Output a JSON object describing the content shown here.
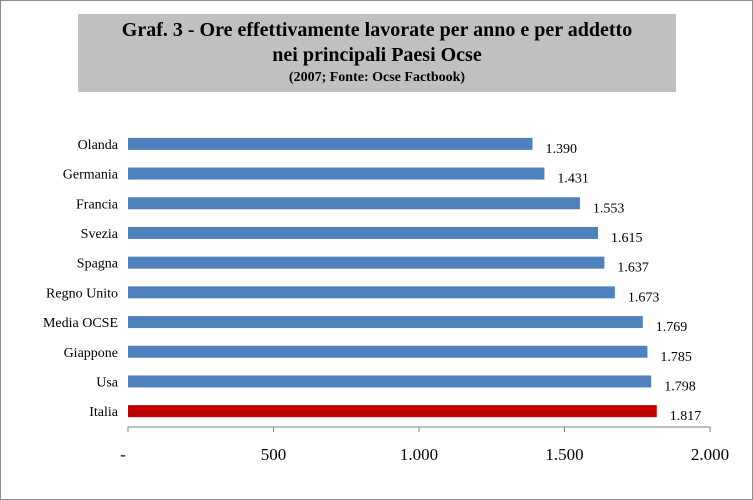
{
  "chart_data": {
    "type": "bar",
    "orientation": "horizontal",
    "title_line1": "Graf. 3 - Ore effettivamente lavorate per anno e per addetto",
    "title_line2": "nei principali Paesi Ocse",
    "subtitle": "(2007; Fonte: Ocse Factbook)",
    "categories": [
      "Olanda",
      "Germania",
      "Francia",
      "Svezia",
      "Spagna",
      "Regno Unito",
      "Media OCSE",
      "Giappone",
      "Usa",
      "Italia"
    ],
    "values": [
      1390,
      1431,
      1553,
      1615,
      1637,
      1673,
      1769,
      1785,
      1798,
      1817
    ],
    "value_labels": [
      "1.390",
      "1.431",
      "1.553",
      "1.615",
      "1.637",
      "1.673",
      "1.769",
      "1.785",
      "1.798",
      "1.817"
    ],
    "xlim": [
      0,
      2000
    ],
    "x_ticks": [
      0,
      500,
      1000,
      1500,
      2000
    ],
    "x_tick_labels": [
      "-",
      "500",
      "1.000",
      "1.500",
      "2.000"
    ],
    "xlabel": "",
    "ylabel": "",
    "grid": false,
    "legend": "none",
    "colors": {
      "default": "#4f81bd",
      "highlight": "#c00000",
      "highlight_category": "Italia"
    }
  }
}
